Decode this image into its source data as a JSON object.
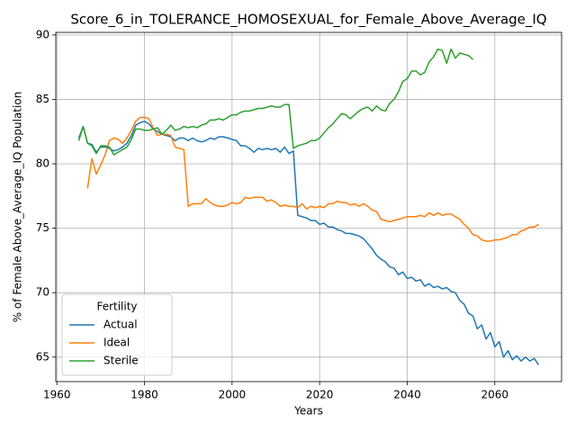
{
  "chart_data": {
    "type": "line",
    "title": "Score_6_in_TOLERANCE_HOMOSEXUAL_for_Female_Above_Average_IQ",
    "xlabel": "Years",
    "ylabel": "% of Female Above_Average_IQ Population",
    "legend_title": "Fertility",
    "legend": "lower left",
    "grid": true,
    "xlim": [
      1959.75,
      2075.25
    ],
    "ylim": [
      63.1,
      90.2
    ],
    "xticks": [
      1960,
      1980,
      2000,
      2020,
      2040,
      2060
    ],
    "yticks": [
      65,
      70,
      75,
      80,
      85,
      90
    ],
    "x": [
      1965,
      1966,
      1967,
      1968,
      1969,
      1970,
      1971,
      1972,
      1973,
      1974,
      1975,
      1976,
      1977,
      1978,
      1979,
      1980,
      1981,
      1982,
      1983,
      1984,
      1985,
      1986,
      1987,
      1988,
      1989,
      1990,
      1991,
      1992,
      1993,
      1994,
      1995,
      1996,
      1997,
      1998,
      1999,
      2000,
      2001,
      2002,
      2003,
      2004,
      2005,
      2006,
      2007,
      2008,
      2009,
      2010,
      2011,
      2012,
      2013,
      2014,
      2015,
      2016,
      2017,
      2018,
      2019,
      2020,
      2021,
      2022,
      2023,
      2024,
      2025,
      2026,
      2027,
      2028,
      2029,
      2030,
      2031,
      2032,
      2033,
      2034,
      2035,
      2036,
      2037,
      2038,
      2039,
      2040,
      2041,
      2042,
      2043,
      2044,
      2045,
      2046,
      2047,
      2048,
      2049,
      2050,
      2051,
      2052,
      2053,
      2054,
      2055,
      2056,
      2057,
      2058,
      2059,
      2060,
      2061,
      2062,
      2063,
      2064,
      2065,
      2066,
      2067,
      2068,
      2069,
      2070
    ],
    "series": [
      {
        "name": "Actual",
        "color": "#1f77b4",
        "values": [
          82.0,
          82.9,
          81.6,
          81.5,
          80.9,
          81.3,
          81.3,
          81.2,
          81.0,
          81.1,
          81.3,
          81.6,
          82.2,
          83.0,
          83.2,
          83.3,
          83.1,
          82.7,
          82.5,
          82.3,
          82.2,
          82.1,
          81.8,
          82.0,
          82.0,
          81.8,
          82.0,
          81.8,
          81.7,
          81.8,
          82.0,
          81.9,
          82.1,
          82.1,
          82.0,
          81.9,
          81.8,
          81.4,
          81.4,
          81.2,
          80.9,
          81.2,
          81.1,
          81.2,
          81.1,
          81.2,
          80.9,
          81.3,
          80.8,
          81.0,
          76.0,
          75.9,
          75.8,
          75.6,
          75.6,
          75.3,
          75.4,
          75.1,
          75.1,
          74.9,
          74.8,
          74.6,
          74.6,
          74.5,
          74.4,
          74.2,
          73.8,
          73.4,
          72.9,
          72.6,
          72.4,
          72.0,
          71.9,
          71.4,
          71.6,
          71.1,
          71.2,
          70.9,
          71.0,
          70.5,
          70.7,
          70.4,
          70.5,
          70.3,
          70.4,
          70.1,
          70.0,
          69.4,
          69.1,
          68.4,
          68.2,
          67.2,
          67.5,
          66.4,
          66.9,
          65.8,
          66.2,
          65.0,
          65.5,
          64.8,
          65.1,
          64.7,
          65.0,
          64.7,
          64.9,
          64.4
        ]
      },
      {
        "name": "Ideal",
        "color": "#ff7f0e",
        "values": [
          null,
          null,
          78.1,
          80.4,
          79.2,
          79.9,
          80.7,
          81.8,
          82.0,
          81.9,
          81.6,
          82.0,
          82.6,
          83.3,
          83.6,
          83.6,
          83.5,
          82.8,
          82.2,
          82.3,
          82.3,
          82.2,
          81.3,
          81.2,
          81.1,
          76.7,
          76.9,
          76.9,
          76.9,
          77.3,
          77.0,
          76.8,
          76.7,
          76.7,
          76.8,
          77.0,
          76.9,
          77.0,
          77.4,
          77.3,
          77.4,
          77.4,
          77.4,
          77.1,
          77.2,
          77.0,
          76.7,
          76.8,
          76.7,
          76.7,
          76.6,
          76.9,
          76.5,
          76.7,
          76.6,
          76.7,
          76.6,
          76.9,
          76.9,
          77.1,
          77.0,
          77.0,
          76.8,
          76.9,
          76.7,
          76.9,
          76.7,
          76.4,
          76.3,
          75.7,
          75.6,
          75.5,
          75.6,
          75.7,
          75.8,
          75.9,
          75.9,
          75.9,
          76.0,
          75.9,
          76.2,
          76.0,
          76.2,
          76.0,
          76.1,
          76.1,
          75.9,
          75.7,
          75.3,
          75.0,
          74.5,
          74.4,
          74.1,
          74.0,
          74.0,
          74.1,
          74.1,
          74.2,
          74.3,
          74.5,
          74.5,
          74.8,
          74.9,
          75.1,
          75.1,
          75.3
        ]
      },
      {
        "name": "Sterile",
        "color": "#2ca02c",
        "values": [
          81.8,
          82.9,
          81.6,
          81.4,
          80.8,
          81.4,
          81.4,
          81.3,
          80.7,
          80.9,
          81.1,
          81.3,
          81.9,
          82.7,
          82.7,
          82.6,
          82.6,
          82.7,
          82.8,
          82.3,
          82.6,
          83.0,
          82.6,
          82.7,
          82.9,
          82.8,
          82.9,
          82.8,
          83.0,
          83.1,
          83.4,
          83.4,
          83.5,
          83.4,
          83.6,
          83.8,
          83.8,
          84.0,
          84.1,
          84.1,
          84.2,
          84.3,
          84.3,
          84.4,
          84.5,
          84.4,
          84.4,
          84.6,
          84.6,
          81.2,
          81.4,
          81.5,
          81.6,
          81.8,
          81.8,
          82.0,
          82.4,
          82.8,
          83.1,
          83.5,
          83.9,
          83.8,
          83.5,
          83.8,
          84.1,
          84.3,
          84.4,
          84.1,
          84.5,
          84.2,
          84.1,
          84.7,
          85.0,
          85.6,
          86.4,
          86.6,
          87.2,
          87.2,
          86.9,
          87.1,
          87.9,
          88.3,
          88.9,
          88.8,
          87.8,
          88.9,
          88.2,
          88.6,
          88.5,
          88.4,
          88.1,
          null,
          null,
          null,
          null,
          null,
          null,
          null,
          null,
          null,
          null,
          null,
          null,
          null,
          null,
          null
        ]
      }
    ]
  }
}
